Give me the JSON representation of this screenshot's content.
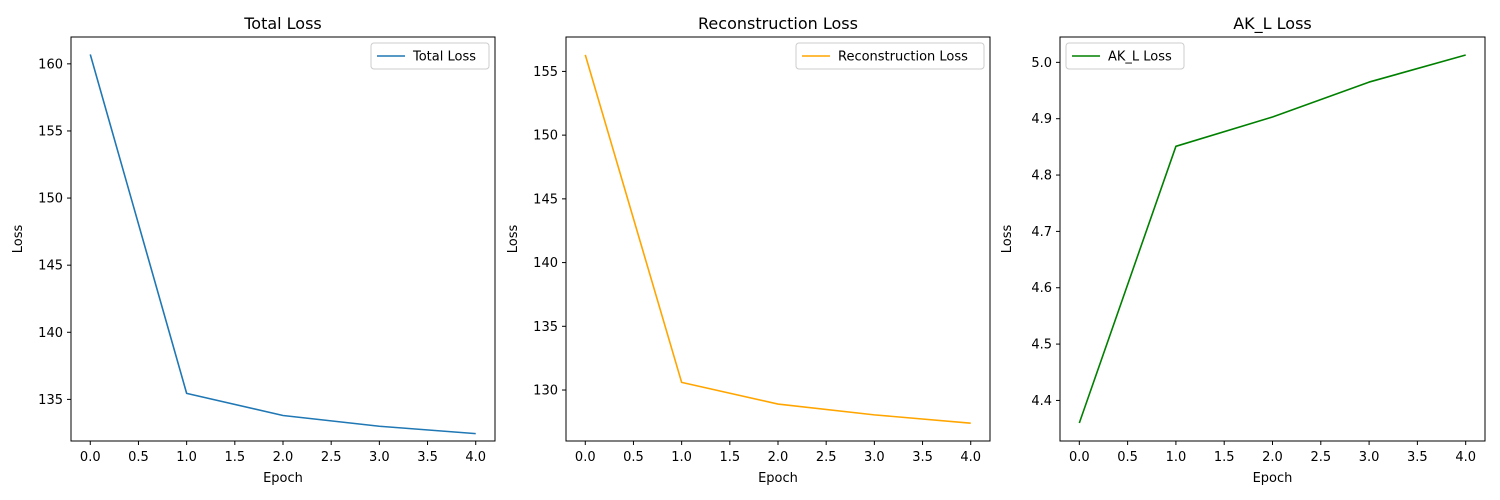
{
  "chart_data": [
    {
      "type": "line",
      "title": "Total Loss",
      "xlabel": "Epoch",
      "ylabel": "Loss",
      "xlim": [
        -0.2,
        4.2
      ],
      "ylim": [
        131.9,
        162.0
      ],
      "xticks": [
        0.0,
        0.5,
        1.0,
        1.5,
        2.0,
        2.5,
        3.0,
        3.5,
        4.0
      ],
      "xtick_labels": [
        "0.0",
        "0.5",
        "1.0",
        "1.5",
        "2.0",
        "2.5",
        "3.0",
        "3.5",
        "4.0"
      ],
      "yticks": [
        135,
        140,
        145,
        150,
        155,
        160
      ],
      "ytick_labels": [
        "135",
        "140",
        "145",
        "150",
        "155",
        "160"
      ],
      "legend_position": "top-right",
      "grid": false,
      "series": [
        {
          "name": "Total Loss",
          "color": "#1f77b4",
          "x": [
            0,
            1,
            2,
            3,
            4
          ],
          "y": [
            160.7,
            135.45,
            133.8,
            133.0,
            132.45
          ]
        }
      ]
    },
    {
      "type": "line",
      "title": "Reconstruction Loss",
      "xlabel": "Epoch",
      "ylabel": "Loss",
      "xlim": [
        -0.2,
        4.2
      ],
      "ylim": [
        126.0,
        157.7
      ],
      "xticks": [
        0.0,
        0.5,
        1.0,
        1.5,
        2.0,
        2.5,
        3.0,
        3.5,
        4.0
      ],
      "xtick_labels": [
        "0.0",
        "0.5",
        "1.0",
        "1.5",
        "2.0",
        "2.5",
        "3.0",
        "3.5",
        "4.0"
      ],
      "yticks": [
        130,
        135,
        140,
        145,
        150,
        155
      ],
      "ytick_labels": [
        "130",
        "135",
        "140",
        "145",
        "150",
        "155"
      ],
      "legend_position": "top-right",
      "grid": false,
      "series": [
        {
          "name": "Reconstruction Loss",
          "color": "#ffa500",
          "x": [
            0,
            1,
            2,
            3,
            4
          ],
          "y": [
            156.3,
            130.6,
            128.9,
            128.05,
            127.4
          ]
        }
      ]
    },
    {
      "type": "line",
      "title": "AK_L Loss",
      "xlabel": "Epoch",
      "ylabel": "Loss",
      "xlim": [
        -0.2,
        4.2
      ],
      "ylim": [
        4.328,
        5.045
      ],
      "xticks": [
        0.0,
        0.5,
        1.0,
        1.5,
        2.0,
        2.5,
        3.0,
        3.5,
        4.0
      ],
      "xtick_labels": [
        "0.0",
        "0.5",
        "1.0",
        "1.5",
        "2.0",
        "2.5",
        "3.0",
        "3.5",
        "4.0"
      ],
      "yticks": [
        4.4,
        4.5,
        4.6,
        4.7,
        4.8,
        4.9,
        5.0
      ],
      "ytick_labels": [
        "4.4",
        "4.5",
        "4.6",
        "4.7",
        "4.8",
        "4.9",
        "5.0"
      ],
      "legend_position": "top-left",
      "grid": false,
      "series": [
        {
          "name": "AK_L Loss",
          "color": "#008000",
          "x": [
            0,
            1,
            2,
            3,
            4
          ],
          "y": [
            4.36,
            4.851,
            4.903,
            4.965,
            5.013
          ]
        }
      ]
    }
  ]
}
